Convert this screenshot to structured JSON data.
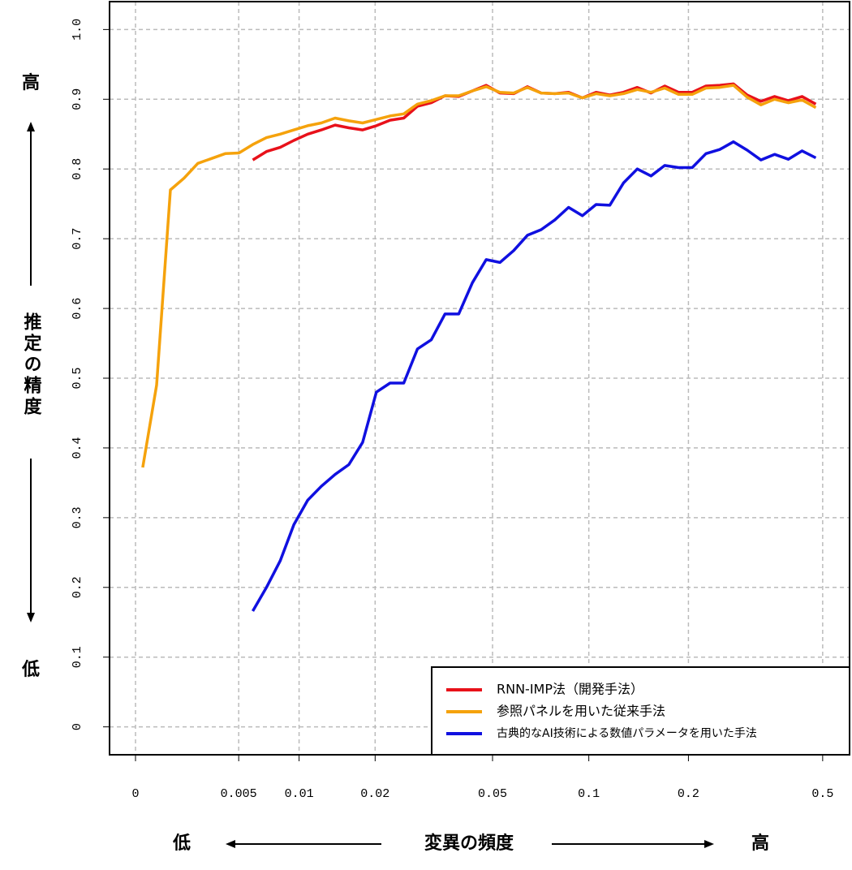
{
  "chart_data": {
    "type": "line",
    "y_label_top": "高",
    "y_label": "推定の精度",
    "y_label_bottom": "低",
    "x_label_left": "低",
    "x_label": "変異の頻度",
    "x_label_right": "高",
    "xscale": {
      "type": "log",
      "offset": 0.005
    },
    "xlim": [
      -0.0008,
      0.6
    ],
    "ylim": [
      -0.04,
      1.04
    ],
    "xticks": [
      0,
      0.005,
      0.01,
      0.02,
      0.05,
      0.1,
      0.2,
      0.5
    ],
    "yticks": [
      0,
      0.1,
      0.2,
      0.3,
      0.4,
      0.5,
      0.6,
      0.7,
      0.8,
      0.9,
      {
        "value": 1,
        "label": "1.0"
      }
    ],
    "grid": true,
    "legend": "bottom-right",
    "x": [
      0.00025,
      0.00076,
      0.00132,
      0.00193,
      0.0026,
      0.00333,
      0.00413,
      0.00502,
      0.00599,
      0.00705,
      0.00821,
      0.00949,
      0.01089,
      0.01242,
      0.01411,
      0.01595,
      0.01798,
      0.0202,
      0.02263,
      0.0253,
      0.02823,
      0.03145,
      0.03496,
      0.03883,
      0.04306,
      0.04771,
      0.0528,
      0.05839,
      0.06451,
      0.07123,
      0.07859,
      0.08667,
      0.09553,
      0.10525,
      0.1159,
      0.12758,
      0.1404,
      0.15445,
      0.16987,
      0.18676,
      0.20529,
      0.22562,
      0.24791,
      0.27232,
      0.29915,
      0.32843,
      0.36067,
      0.396,
      0.43477,
      0.47725
    ],
    "series": [
      {
        "name": "RNN-IMP法（開発手法）",
        "color": "#e8111a",
        "values": [
          null,
          null,
          null,
          null,
          null,
          null,
          null,
          null,
          0.813,
          0.825,
          0.831,
          0.841,
          0.85,
          0.856,
          0.863,
          0.859,
          0.856,
          0.862,
          0.87,
          0.873,
          0.89,
          0.895,
          0.905,
          0.904,
          0.912,
          0.92,
          0.909,
          0.908,
          0.918,
          0.909,
          0.908,
          0.91,
          0.902,
          0.91,
          0.906,
          0.91,
          0.917,
          0.909,
          0.919,
          0.91,
          0.91,
          0.919,
          0.92,
          0.922,
          0.906,
          0.897,
          0.904,
          0.898,
          0.904,
          0.893
        ]
      },
      {
        "name": "参照パネルを用いた従来手法",
        "color": "#f5a20c",
        "values": [
          0.372,
          0.49,
          0.77,
          0.787,
          0.808,
          0.815,
          0.822,
          0.823,
          0.835,
          0.845,
          0.85,
          0.856,
          0.862,
          0.866,
          0.873,
          0.869,
          0.866,
          0.871,
          0.876,
          0.879,
          0.893,
          0.898,
          0.905,
          0.905,
          0.912,
          0.918,
          0.91,
          0.909,
          0.917,
          0.909,
          0.908,
          0.909,
          0.902,
          0.908,
          0.905,
          0.908,
          0.914,
          0.91,
          0.916,
          0.907,
          0.907,
          0.916,
          0.917,
          0.92,
          0.903,
          0.892,
          0.9,
          0.895,
          0.899,
          0.888
        ]
      },
      {
        "name": "古典的なAI技術による数値パラメータを用いた手法",
        "color": "#1010e0",
        "values": [
          null,
          null,
          null,
          null,
          null,
          null,
          null,
          null,
          0.166,
          0.2,
          0.238,
          0.29,
          0.325,
          0.345,
          0.362,
          0.376,
          0.408,
          0.48,
          0.493,
          0.493,
          0.542,
          0.555,
          0.592,
          0.592,
          0.637,
          0.67,
          0.666,
          0.683,
          0.705,
          0.713,
          0.727,
          0.745,
          0.733,
          0.749,
          0.748,
          0.78,
          0.8,
          0.79,
          0.805,
          0.802,
          0.802,
          0.822,
          0.828,
          0.839,
          0.827,
          0.813,
          0.821,
          0.814,
          0.826,
          0.816
        ]
      }
    ]
  }
}
